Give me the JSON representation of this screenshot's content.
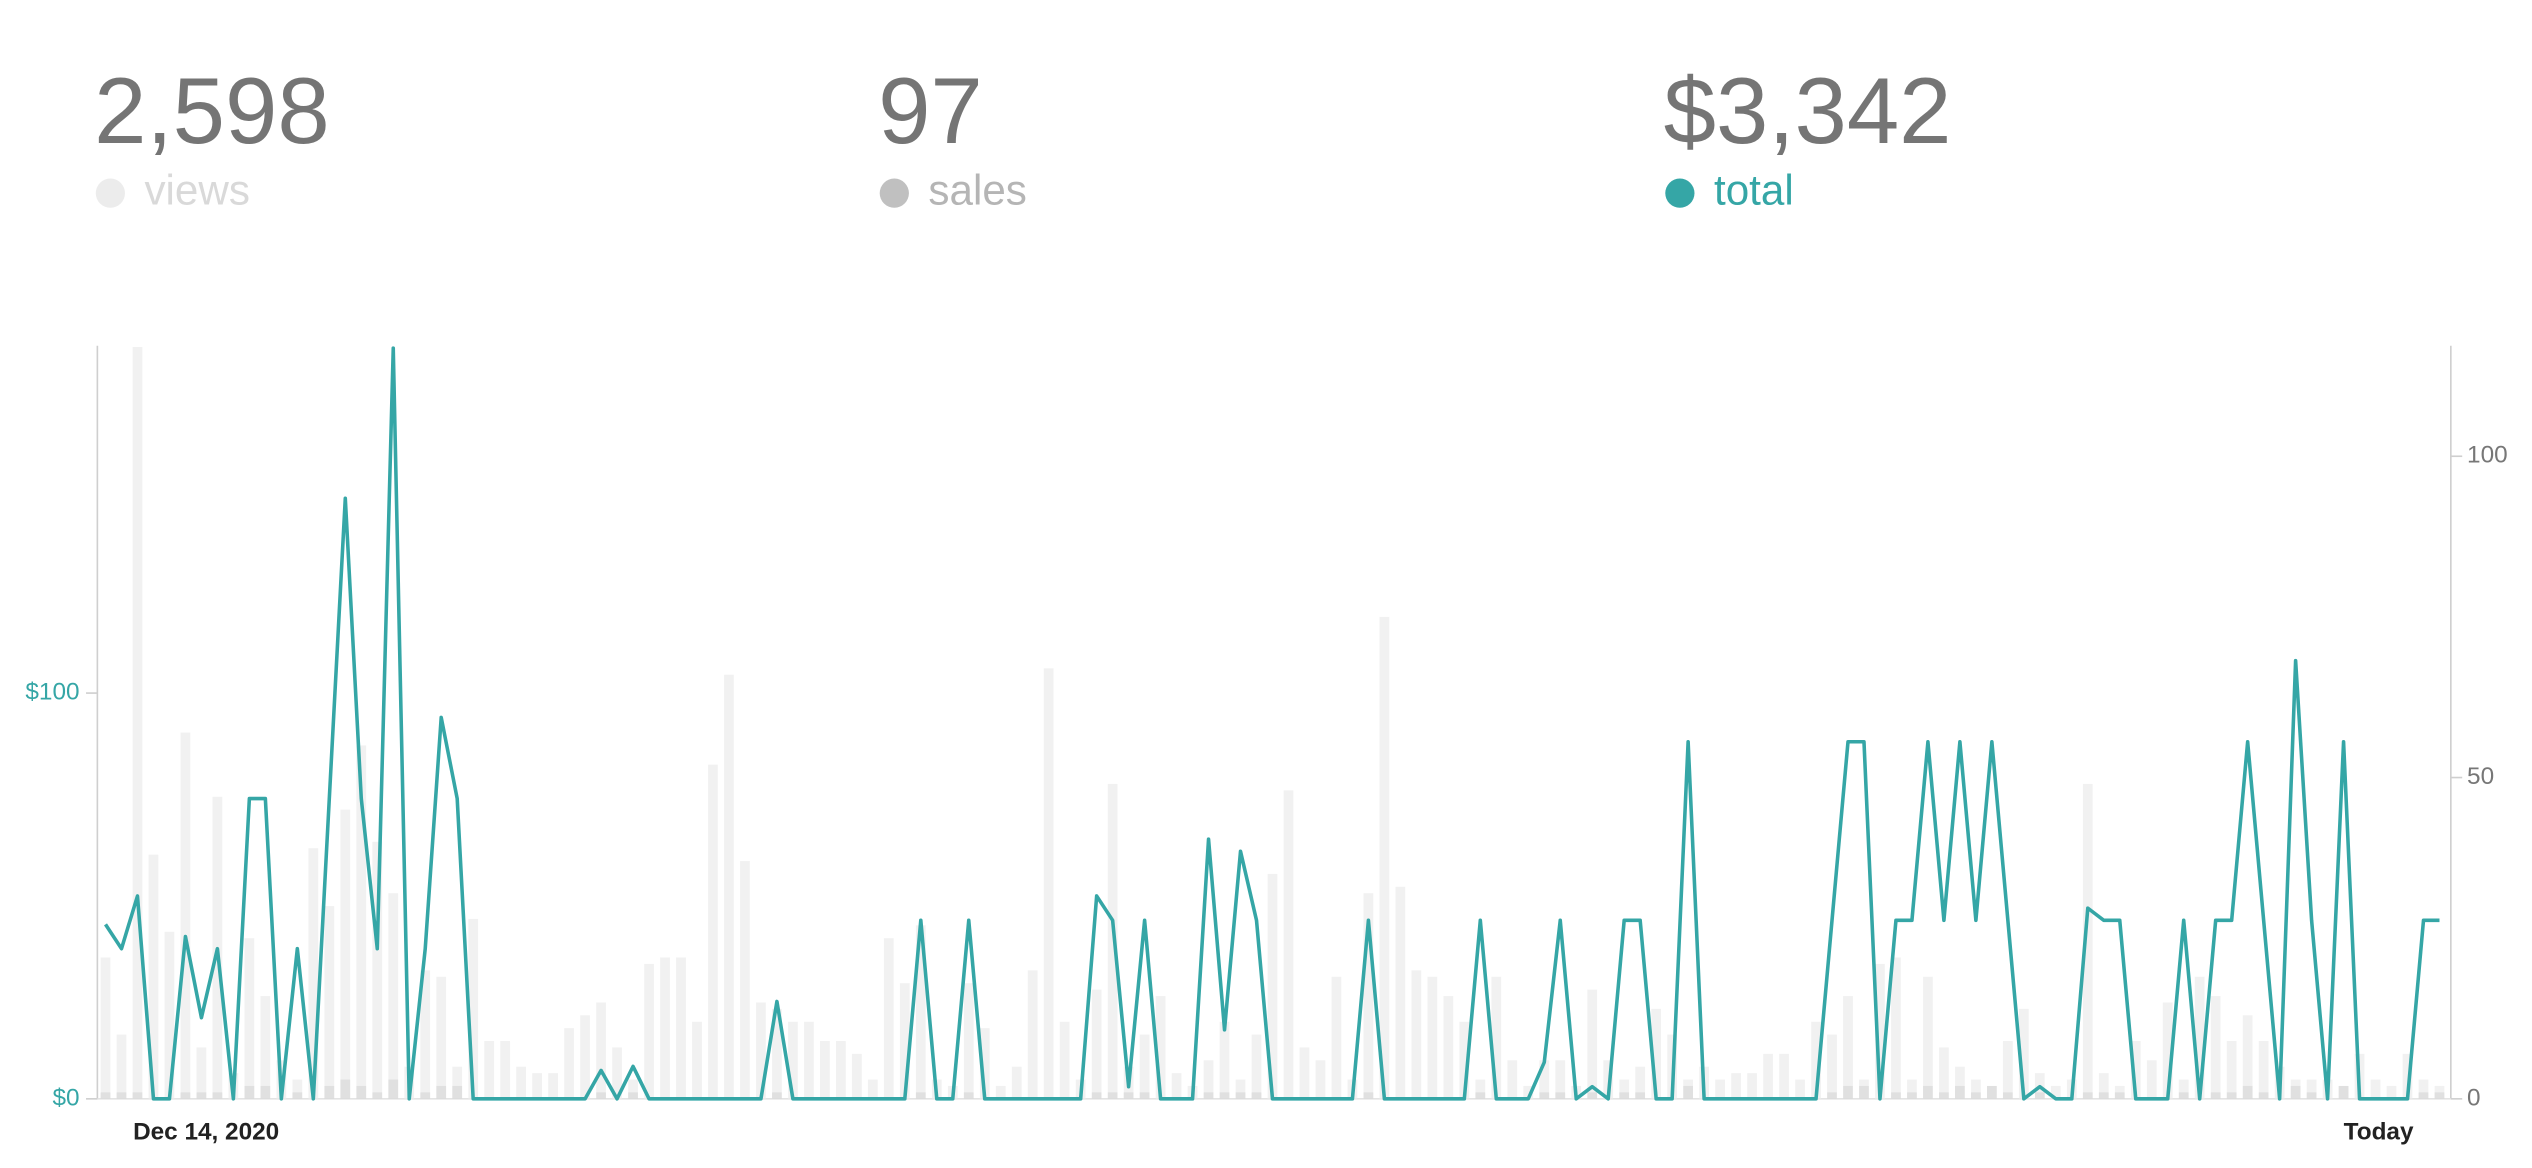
{
  "summary": [
    "2,598",
    "97",
    "$3,342"
  ],
  "chart_data": {
    "type": "combo",
    "categories": [
      "Dec 14, 2020",
      null,
      null,
      null,
      null,
      null,
      null,
      null,
      null,
      null,
      null,
      null,
      null,
      null,
      null,
      null,
      null,
      null,
      null,
      null,
      null,
      null,
      null,
      null,
      null,
      null,
      null,
      null,
      null,
      null,
      null,
      null,
      null,
      null,
      null,
      null,
      null,
      null,
      null,
      null,
      null,
      null,
      null,
      null,
      null,
      null,
      null,
      null,
      null,
      null,
      null,
      null,
      null,
      null,
      null,
      null,
      null,
      null,
      null,
      null,
      null,
      null,
      null,
      null,
      null,
      null,
      null,
      null,
      null,
      null,
      null,
      null,
      null,
      null,
      null,
      null,
      null,
      null,
      null,
      null,
      null,
      null,
      null,
      null,
      null,
      null,
      null,
      null,
      null,
      null,
      null,
      null,
      null,
      null,
      null,
      null,
      null,
      null,
      null,
      null,
      null,
      null,
      null,
      null,
      null,
      null,
      null,
      null,
      null,
      null,
      null,
      null,
      null,
      null,
      null,
      null,
      null,
      null,
      null,
      null,
      null,
      null,
      null,
      null,
      null,
      null,
      null,
      null,
      null,
      null,
      null,
      null,
      null,
      null,
      null,
      null,
      null,
      null,
      null,
      null,
      null,
      null,
      null,
      null,
      null,
      null,
      "Today"
    ],
    "series": [
      {
        "name": "views",
        "color": "#ececec",
        "kind": "bar",
        "axis": "y2",
        "values": [
          22,
          10,
          117,
          38,
          26,
          57,
          8,
          47,
          4,
          25,
          16,
          6,
          3,
          39,
          30,
          45,
          55,
          40,
          32,
          5,
          20,
          19,
          5,
          28,
          9,
          9,
          5,
          4,
          4,
          11,
          13,
          15,
          8,
          3,
          21,
          22,
          22,
          12,
          52,
          66,
          37,
          15,
          14,
          12,
          12,
          9,
          9,
          7,
          3,
          25,
          18,
          27,
          3,
          2,
          18,
          11,
          2,
          5,
          20,
          67,
          12,
          3,
          17,
          49,
          5,
          10,
          16,
          4,
          2,
          6,
          12,
          3,
          10,
          35,
          48,
          8,
          6,
          19,
          3,
          32,
          75,
          33,
          20,
          19,
          16,
          12,
          3,
          19,
          6,
          2,
          6,
          6,
          2,
          17,
          6,
          3,
          5,
          14,
          10,
          3,
          5,
          3,
          4,
          4,
          7,
          7,
          3,
          12,
          10,
          16,
          3,
          21,
          22,
          3,
          19,
          8,
          5,
          3,
          2,
          9,
          14,
          4,
          2,
          3,
          49,
          4,
          2,
          9,
          6,
          15,
          3,
          19,
          16,
          9,
          13,
          9,
          5,
          3,
          3,
          3,
          2,
          7,
          3,
          2,
          7,
          3,
          2
        ]
      },
      {
        "name": "sales",
        "color": "#c0c0c0",
        "kind": "bar",
        "axis": "y2",
        "values": [
          1,
          1,
          1,
          0,
          0,
          1,
          1,
          1,
          0,
          2,
          2,
          0,
          1,
          0,
          2,
          3,
          2,
          1,
          3,
          0,
          1,
          2,
          2,
          0,
          0,
          0,
          0,
          0,
          0,
          0,
          0,
          1,
          0,
          1,
          0,
          0,
          0,
          0,
          0,
          0,
          0,
          0,
          1,
          0,
          0,
          0,
          0,
          0,
          0,
          0,
          0,
          1,
          0,
          0,
          1,
          0,
          0,
          0,
          0,
          0,
          0,
          0,
          1,
          1,
          1,
          1,
          0,
          0,
          0,
          1,
          1,
          1,
          1,
          0,
          0,
          0,
          0,
          0,
          0,
          1,
          0,
          0,
          0,
          0,
          0,
          0,
          1,
          0,
          0,
          0,
          1,
          1,
          0,
          1,
          0,
          1,
          1,
          0,
          0,
          2,
          0,
          0,
          0,
          0,
          0,
          0,
          0,
          0,
          1,
          2,
          2,
          0,
          1,
          1,
          2,
          1,
          2,
          1,
          2,
          1,
          0,
          1,
          0,
          0,
          1,
          1,
          1,
          0,
          0,
          0,
          1,
          0,
          1,
          1,
          2,
          1,
          0,
          2,
          1,
          0,
          2,
          0,
          0,
          0,
          0,
          1,
          1
        ]
      },
      {
        "name": "total",
        "color": "#35a6a6",
        "kind": "line",
        "axis": "y",
        "values": [
          43,
          37,
          50,
          0,
          0,
          40,
          20,
          37,
          0,
          74,
          74,
          0,
          37,
          0,
          74,
          148,
          74,
          37,
          185,
          0,
          37,
          94,
          74,
          0,
          0,
          0,
          0,
          0,
          0,
          0,
          0,
          7,
          0,
          8,
          0,
          0,
          0,
          0,
          0,
          0,
          0,
          0,
          24,
          0,
          0,
          0,
          0,
          0,
          0,
          0,
          0,
          44,
          0,
          0,
          44,
          0,
          0,
          0,
          0,
          0,
          0,
          0,
          50,
          44,
          3,
          44,
          0,
          0,
          0,
          64,
          17,
          61,
          44,
          0,
          0,
          0,
          0,
          0,
          0,
          44,
          0,
          0,
          0,
          0,
          0,
          0,
          44,
          0,
          0,
          0,
          9,
          44,
          0,
          3,
          0,
          44,
          44,
          0,
          0,
          88,
          0,
          0,
          0,
          0,
          0,
          0,
          0,
          0,
          44,
          88,
          88,
          0,
          44,
          44,
          88,
          44,
          88,
          44,
          88,
          44,
          0,
          3,
          0,
          0,
          47,
          44,
          44,
          0,
          0,
          0,
          44,
          0,
          44,
          44,
          88,
          44,
          0,
          108,
          44,
          0,
          88,
          0,
          0,
          0,
          0,
          44,
          44
        ]
      }
    ],
    "ylim": [
      0,
      185.6
    ],
    "yticks": [
      {
        "value": 0,
        "label": "$0"
      },
      {
        "value": 100,
        "label": "$100"
      }
    ],
    "y2lim": [
      0,
      117.2
    ],
    "y2ticks": [
      0,
      50,
      100
    ],
    "grid": false
  }
}
